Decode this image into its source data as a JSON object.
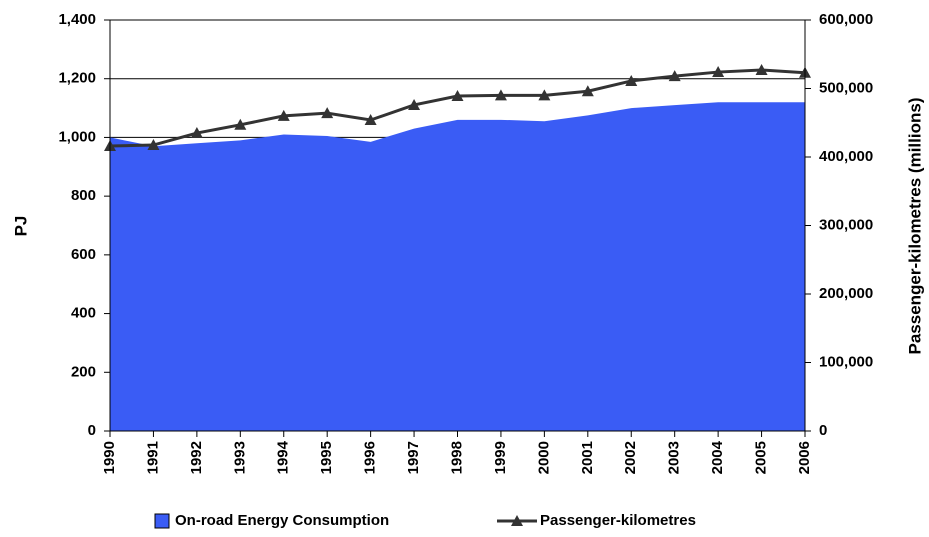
{
  "chart_data": {
    "type": "area-line",
    "categories": [
      "1990",
      "1991",
      "1992",
      "1993",
      "1994",
      "1995",
      "1996",
      "1997",
      "1998",
      "1999",
      "2000",
      "2001",
      "2002",
      "2003",
      "2004",
      "2005",
      "2006"
    ],
    "series": [
      {
        "name": "On-road Energy Consumption",
        "color": "#3a5cf5",
        "type": "area",
        "values": [
          1000,
          970,
          980,
          990,
          1010,
          1005,
          985,
          1030,
          1060,
          1060,
          1055,
          1075,
          1100,
          1110,
          1120,
          1120,
          1120
        ]
      },
      {
        "name": "Passenger-kilometres",
        "color": "#333333",
        "type": "line",
        "axis": "y2",
        "values": [
          416000,
          417500,
          435000,
          447000,
          460000,
          464000,
          454000,
          476000,
          489000,
          490000,
          490000,
          496000,
          511000,
          518000,
          524000,
          527000,
          523000
        ]
      }
    ],
    "ylabel": "PJ",
    "y2label": "Passenger-kilometres (millions)",
    "ylim": [
      0,
      1400
    ],
    "yticks": [
      0,
      200,
      400,
      600,
      800,
      {
        "value": 1000,
        "label": "1,000"
      },
      {
        "value": 1200,
        "label": "1,200"
      },
      {
        "value": 1400,
        "label": "1,400"
      }
    ],
    "y2lim": [
      0,
      600000
    ],
    "y2ticks": [
      0,
      {
        "value": 100000,
        "label": "100,000"
      },
      {
        "value": 200000,
        "label": "200,000"
      },
      {
        "value": 300000,
        "label": "300,000"
      },
      {
        "value": 400000,
        "label": "400,000"
      },
      {
        "value": 500000,
        "label": "500,000"
      },
      {
        "value": 600000,
        "label": "600,000"
      }
    ],
    "grid": true,
    "legend": "bottom"
  }
}
